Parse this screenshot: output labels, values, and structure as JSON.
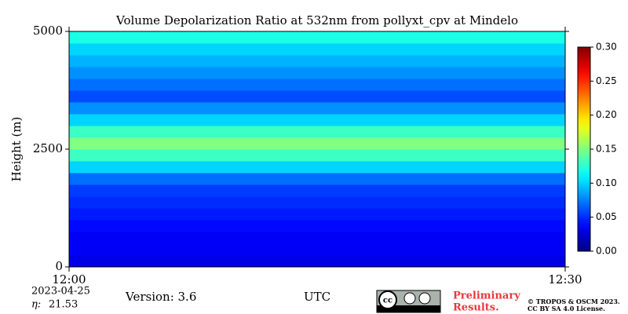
{
  "chart_data": {
    "type": "heatmap",
    "title": "Volume Depolarization Ratio at 532nm from pollyxt_cpv at Mindelo",
    "ylabel": "Height (m)",
    "xlabel": "UTC",
    "xticks": [
      "12:00",
      "12:30"
    ],
    "ylim": [
      0,
      5000
    ],
    "yticks": [
      0,
      2500,
      5000
    ],
    "y_bins": [
      0,
      250,
      500,
      750,
      1000,
      1250,
      1500,
      1750,
      2000,
      2250,
      2500,
      2750,
      3000,
      3250,
      3500,
      3750,
      4000,
      4250,
      4500,
      4750,
      5000
    ],
    "values": [
      0.03,
      0.035,
      0.035,
      0.04,
      0.045,
      0.05,
      0.055,
      0.07,
      0.1,
      0.13,
      0.15,
      0.13,
      0.1,
      0.08,
      0.06,
      0.07,
      0.08,
      0.09,
      0.1,
      0.12
    ],
    "colormap": "jet",
    "clim": [
      0,
      0.3
    ],
    "cticks": [
      {
        "value": 0,
        "label": "0.00"
      },
      {
        "value": 0.05,
        "label": "0.05"
      },
      {
        "value": 0.1,
        "label": "0.10"
      },
      {
        "value": 0.15,
        "label": "0.15"
      },
      {
        "value": 0.2,
        "label": "0.20"
      },
      {
        "value": 0.25,
        "label": "0.25"
      },
      {
        "value": 0.3,
        "label": "0.30"
      }
    ]
  },
  "footer": {
    "date": "2023-04-25",
    "eta_label": "η:",
    "eta": 21.53,
    "version": "Version: 3.6",
    "preliminary": [
      "Preliminary",
      "Results."
    ],
    "copyright": [
      "© TROPOS & OSCM 2023.",
      "CC BY SA 4.0 License."
    ]
  }
}
